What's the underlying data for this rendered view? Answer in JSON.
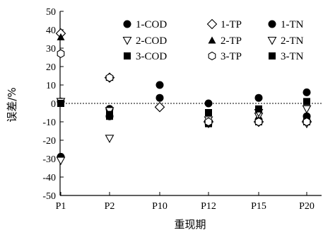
{
  "chart_data": {
    "type": "scatter",
    "xlabel": "重现期",
    "ylabel": "误差/%",
    "categories": [
      "P1",
      "P2",
      "P10",
      "P12",
      "P15",
      "P20"
    ],
    "ylim": [
      -50,
      50
    ],
    "yticks": [
      -50,
      -40,
      -30,
      -20,
      -10,
      0,
      10,
      20,
      30,
      40,
      50
    ],
    "reference_line": 0,
    "grid": false,
    "legend_position": "top-right",
    "series": [
      {
        "name": "1-COD",
        "marker": "circle-filled",
        "values": [
          1,
          -7,
          10,
          0,
          3,
          6
        ]
      },
      {
        "name": "1-TP",
        "marker": "diamond-open",
        "values": [
          38,
          14,
          -2,
          -10,
          -10,
          -10
        ]
      },
      {
        "name": "1-TN",
        "marker": "circle-filled",
        "values": [
          -29,
          -3,
          3,
          -10,
          -9,
          -7
        ]
      },
      {
        "name": "2-COD",
        "marker": "triangle-down-open",
        "values": [
          -31,
          -19,
          null,
          -11,
          -7,
          -3
        ]
      },
      {
        "name": "2-TP",
        "marker": "triangle-up-filled",
        "values": [
          36,
          14,
          null,
          -10,
          -9,
          -8
        ]
      },
      {
        "name": "2-TN",
        "marker": "triangle-down-open",
        "values": [
          1,
          -4,
          null,
          -9,
          -5,
          -11
        ]
      },
      {
        "name": "3-COD",
        "marker": "square-filled",
        "values": [
          0,
          -7,
          null,
          -11,
          -10,
          -10
        ]
      },
      {
        "name": "3-TP",
        "marker": "hexagon-open",
        "values": [
          27,
          14,
          null,
          -10,
          -10,
          -10
        ]
      },
      {
        "name": "3-TN",
        "marker": "square-filled",
        "values": [
          0,
          -6,
          null,
          -5,
          -3,
          1
        ]
      }
    ]
  }
}
